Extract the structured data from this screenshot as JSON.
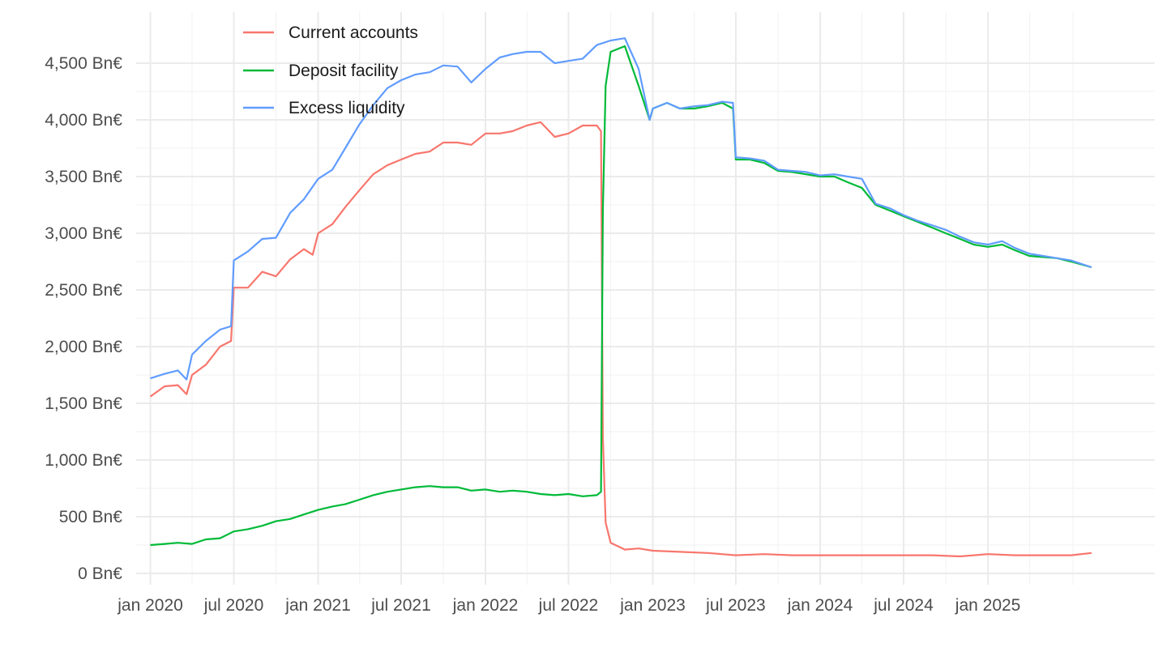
{
  "chart_data": {
    "type": "line",
    "title": "",
    "xlabel": "",
    "ylabel": "",
    "grid": true,
    "legend_position": "top-left",
    "x_tick_labels": [
      "jan 2020",
      "jul 2020",
      "jan 2021",
      "jul 2021",
      "jan 2022",
      "jul 2022",
      "jan 2023",
      "jul 2023",
      "jan 2024",
      "jul 2024",
      "jan 2025"
    ],
    "x_tick_dates": [
      "2020-01-01",
      "2020-07-01",
      "2021-01-01",
      "2021-07-01",
      "2022-01-01",
      "2022-07-01",
      "2023-01-01",
      "2023-07-01",
      "2024-01-01",
      "2024-07-01",
      "2025-01-01"
    ],
    "x_range": [
      "2019-12-01",
      "2025-12-31"
    ],
    "y_ticks": [
      0,
      500,
      1000,
      1500,
      2000,
      2500,
      3000,
      3500,
      4000,
      4500
    ],
    "y_tick_labels": [
      "0 Bn€",
      "500 Bn€",
      "1,000 Bn€",
      "1,500 Bn€",
      "2,000 Bn€",
      "2,500 Bn€",
      "3,000 Bn€",
      "3,500 Bn€",
      "4,000 Bn€",
      "4,500 Bn€"
    ],
    "ylim": [
      -100,
      4950
    ],
    "unit": "Bn€",
    "series": [
      {
        "name": "Current accounts",
        "color": "#F8766D",
        "points": [
          [
            "2020-01-01",
            1560
          ],
          [
            "2020-02-01",
            1650
          ],
          [
            "2020-03-01",
            1660
          ],
          [
            "2020-03-20",
            1580
          ],
          [
            "2020-04-01",
            1750
          ],
          [
            "2020-05-01",
            1840
          ],
          [
            "2020-06-01",
            2000
          ],
          [
            "2020-06-25",
            2050
          ],
          [
            "2020-07-01",
            2520
          ],
          [
            "2020-08-01",
            2520
          ],
          [
            "2020-09-01",
            2660
          ],
          [
            "2020-10-01",
            2620
          ],
          [
            "2020-11-01",
            2770
          ],
          [
            "2020-12-01",
            2860
          ],
          [
            "2020-12-20",
            2810
          ],
          [
            "2021-01-01",
            3000
          ],
          [
            "2021-02-01",
            3080
          ],
          [
            "2021-03-01",
            3230
          ],
          [
            "2021-04-01",
            3380
          ],
          [
            "2021-05-01",
            3520
          ],
          [
            "2021-06-01",
            3600
          ],
          [
            "2021-07-01",
            3650
          ],
          [
            "2021-08-01",
            3700
          ],
          [
            "2021-09-01",
            3720
          ],
          [
            "2021-10-01",
            3800
          ],
          [
            "2021-11-01",
            3800
          ],
          [
            "2021-12-01",
            3780
          ],
          [
            "2022-01-01",
            3880
          ],
          [
            "2022-02-01",
            3880
          ],
          [
            "2022-03-01",
            3900
          ],
          [
            "2022-04-01",
            3950
          ],
          [
            "2022-05-01",
            3980
          ],
          [
            "2022-06-01",
            3850
          ],
          [
            "2022-07-01",
            3880
          ],
          [
            "2022-08-01",
            3950
          ],
          [
            "2022-09-01",
            3950
          ],
          [
            "2022-09-10",
            3900
          ],
          [
            "2022-09-14",
            1200
          ],
          [
            "2022-09-20",
            450
          ],
          [
            "2022-10-01",
            270
          ],
          [
            "2022-11-01",
            210
          ],
          [
            "2022-12-01",
            220
          ],
          [
            "2023-01-01",
            200
          ],
          [
            "2023-03-01",
            190
          ],
          [
            "2023-05-01",
            180
          ],
          [
            "2023-07-01",
            160
          ],
          [
            "2023-09-01",
            170
          ],
          [
            "2023-11-01",
            160
          ],
          [
            "2024-01-01",
            160
          ],
          [
            "2024-03-01",
            160
          ],
          [
            "2024-05-01",
            160
          ],
          [
            "2024-07-01",
            160
          ],
          [
            "2024-09-01",
            160
          ],
          [
            "2024-11-01",
            150
          ],
          [
            "2025-01-01",
            170
          ],
          [
            "2025-03-01",
            160
          ],
          [
            "2025-05-01",
            160
          ],
          [
            "2025-07-01",
            160
          ],
          [
            "2025-08-15",
            180
          ]
        ]
      },
      {
        "name": "Deposit facility",
        "color": "#00BA38",
        "points": [
          [
            "2020-01-01",
            250
          ],
          [
            "2020-02-01",
            260
          ],
          [
            "2020-03-01",
            270
          ],
          [
            "2020-04-01",
            260
          ],
          [
            "2020-05-01",
            300
          ],
          [
            "2020-06-01",
            310
          ],
          [
            "2020-07-01",
            370
          ],
          [
            "2020-08-01",
            390
          ],
          [
            "2020-09-01",
            420
          ],
          [
            "2020-10-01",
            460
          ],
          [
            "2020-11-01",
            480
          ],
          [
            "2020-12-01",
            520
          ],
          [
            "2021-01-01",
            560
          ],
          [
            "2021-02-01",
            590
          ],
          [
            "2021-03-01",
            610
          ],
          [
            "2021-04-01",
            650
          ],
          [
            "2021-05-01",
            690
          ],
          [
            "2021-06-01",
            720
          ],
          [
            "2021-07-01",
            740
          ],
          [
            "2021-08-01",
            760
          ],
          [
            "2021-09-01",
            770
          ],
          [
            "2021-10-01",
            760
          ],
          [
            "2021-11-01",
            760
          ],
          [
            "2021-12-01",
            730
          ],
          [
            "2022-01-01",
            740
          ],
          [
            "2022-02-01",
            720
          ],
          [
            "2022-03-01",
            730
          ],
          [
            "2022-04-01",
            720
          ],
          [
            "2022-05-01",
            700
          ],
          [
            "2022-06-01",
            690
          ],
          [
            "2022-07-01",
            700
          ],
          [
            "2022-08-01",
            680
          ],
          [
            "2022-09-01",
            690
          ],
          [
            "2022-09-10",
            720
          ],
          [
            "2022-09-14",
            3200
          ],
          [
            "2022-09-20",
            4300
          ],
          [
            "2022-10-01",
            4600
          ],
          [
            "2022-11-01",
            4650
          ],
          [
            "2022-12-01",
            4300
          ],
          [
            "2022-12-25",
            4000
          ],
          [
            "2023-01-01",
            4100
          ],
          [
            "2023-02-01",
            4150
          ],
          [
            "2023-03-01",
            4100
          ],
          [
            "2023-04-01",
            4100
          ],
          [
            "2023-05-01",
            4120
          ],
          [
            "2023-06-01",
            4150
          ],
          [
            "2023-06-25",
            4100
          ],
          [
            "2023-07-01",
            3650
          ],
          [
            "2023-08-01",
            3650
          ],
          [
            "2023-09-01",
            3620
          ],
          [
            "2023-10-01",
            3550
          ],
          [
            "2023-11-01",
            3540
          ],
          [
            "2023-12-01",
            3520
          ],
          [
            "2024-01-01",
            3500
          ],
          [
            "2024-02-01",
            3500
          ],
          [
            "2024-03-01",
            3450
          ],
          [
            "2024-04-01",
            3400
          ],
          [
            "2024-05-01",
            3250
          ],
          [
            "2024-06-01",
            3200
          ],
          [
            "2024-07-01",
            3150
          ],
          [
            "2024-08-01",
            3100
          ],
          [
            "2024-09-01",
            3050
          ],
          [
            "2024-10-01",
            3000
          ],
          [
            "2024-11-01",
            2950
          ],
          [
            "2024-12-01",
            2900
          ],
          [
            "2025-01-01",
            2880
          ],
          [
            "2025-02-01",
            2900
          ],
          [
            "2025-03-01",
            2850
          ],
          [
            "2025-04-01",
            2800
          ],
          [
            "2025-05-01",
            2790
          ],
          [
            "2025-06-01",
            2780
          ],
          [
            "2025-07-01",
            2750
          ],
          [
            "2025-08-15",
            2700
          ]
        ]
      },
      {
        "name": "Excess liquidity",
        "color": "#619CFF",
        "points": [
          [
            "2020-01-01",
            1720
          ],
          [
            "2020-02-01",
            1760
          ],
          [
            "2020-03-01",
            1790
          ],
          [
            "2020-03-20",
            1710
          ],
          [
            "2020-04-01",
            1930
          ],
          [
            "2020-05-01",
            2050
          ],
          [
            "2020-06-01",
            2150
          ],
          [
            "2020-06-25",
            2180
          ],
          [
            "2020-07-01",
            2760
          ],
          [
            "2020-08-01",
            2840
          ],
          [
            "2020-09-01",
            2950
          ],
          [
            "2020-10-01",
            2960
          ],
          [
            "2020-11-01",
            3180
          ],
          [
            "2020-12-01",
            3300
          ],
          [
            "2021-01-01",
            3480
          ],
          [
            "2021-02-01",
            3560
          ],
          [
            "2021-03-01",
            3750
          ],
          [
            "2021-04-01",
            3960
          ],
          [
            "2021-05-01",
            4130
          ],
          [
            "2021-06-01",
            4280
          ],
          [
            "2021-07-01",
            4350
          ],
          [
            "2021-08-01",
            4400
          ],
          [
            "2021-09-01",
            4420
          ],
          [
            "2021-10-01",
            4480
          ],
          [
            "2021-11-01",
            4470
          ],
          [
            "2021-12-01",
            4330
          ],
          [
            "2022-01-01",
            4450
          ],
          [
            "2022-02-01",
            4550
          ],
          [
            "2022-03-01",
            4580
          ],
          [
            "2022-04-01",
            4600
          ],
          [
            "2022-05-01",
            4600
          ],
          [
            "2022-06-01",
            4500
          ],
          [
            "2022-07-01",
            4520
          ],
          [
            "2022-08-01",
            4540
          ],
          [
            "2022-09-01",
            4660
          ],
          [
            "2022-10-01",
            4700
          ],
          [
            "2022-11-01",
            4720
          ],
          [
            "2022-12-01",
            4450
          ],
          [
            "2022-12-25",
            4000
          ],
          [
            "2023-01-01",
            4100
          ],
          [
            "2023-02-01",
            4150
          ],
          [
            "2023-03-01",
            4100
          ],
          [
            "2023-04-01",
            4120
          ],
          [
            "2023-05-01",
            4130
          ],
          [
            "2023-06-01",
            4160
          ],
          [
            "2023-06-25",
            4150
          ],
          [
            "2023-07-01",
            3670
          ],
          [
            "2023-08-01",
            3660
          ],
          [
            "2023-09-01",
            3640
          ],
          [
            "2023-10-01",
            3560
          ],
          [
            "2023-11-01",
            3550
          ],
          [
            "2023-12-01",
            3540
          ],
          [
            "2024-01-01",
            3510
          ],
          [
            "2024-02-01",
            3520
          ],
          [
            "2024-03-01",
            3500
          ],
          [
            "2024-04-01",
            3480
          ],
          [
            "2024-05-01",
            3260
          ],
          [
            "2024-06-01",
            3220
          ],
          [
            "2024-07-01",
            3160
          ],
          [
            "2024-08-01",
            3110
          ],
          [
            "2024-09-01",
            3070
          ],
          [
            "2024-10-01",
            3030
          ],
          [
            "2024-11-01",
            2970
          ],
          [
            "2024-12-01",
            2920
          ],
          [
            "2025-01-01",
            2900
          ],
          [
            "2025-02-01",
            2930
          ],
          [
            "2025-03-01",
            2870
          ],
          [
            "2025-04-01",
            2820
          ],
          [
            "2025-05-01",
            2800
          ],
          [
            "2025-06-01",
            2780
          ],
          [
            "2025-07-01",
            2760
          ],
          [
            "2025-08-15",
            2700
          ]
        ]
      }
    ]
  }
}
